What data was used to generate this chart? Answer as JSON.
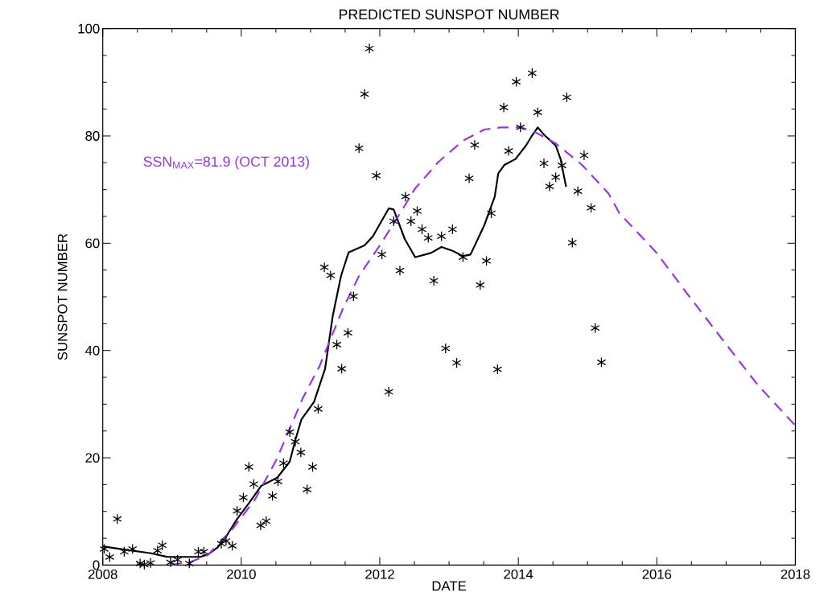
{
  "chart_data": {
    "type": "line",
    "title": "PREDICTED SUNSPOT NUMBER",
    "xlabel": "DATE",
    "ylabel": "SUNSPOT NUMBER",
    "xlim": [
      2008,
      2018
    ],
    "xticks": [
      2008,
      2010,
      2012,
      2014,
      2016,
      2018
    ],
    "ylim": [
      0,
      100
    ],
    "yticks": [
      0,
      20,
      40,
      60,
      80,
      100
    ],
    "grid": false,
    "annotations": [
      "SSN$_{MAX}$=81.9 (OCT 2013)"
    ],
    "series": [
      {
        "type": "scatter",
        "marker": "cross",
        "color": "#000000",
        "x": [
          2008.02,
          2008.1,
          2008.21,
          2008.31,
          2008.43,
          2008.54,
          2008.6,
          2008.69,
          2008.79,
          2008.86,
          2008.98,
          2009.08,
          2009.25,
          2009.38,
          2009.46,
          2009.71,
          2009.78,
          2009.87,
          2009.94,
          2010.03,
          2010.11,
          2010.18,
          2010.28,
          2010.36,
          2010.45,
          2010.53,
          2010.61,
          2010.7,
          2010.78,
          2010.86,
          2010.95,
          2011.03,
          2011.11,
          2011.2,
          2011.29,
          2011.38,
          2011.45,
          2011.54,
          2011.62,
          2011.7,
          2011.78,
          2011.85,
          2011.95,
          2012.03,
          2012.13,
          2012.2,
          2012.29,
          2012.37,
          2012.45,
          2012.54,
          2012.61,
          2012.7,
          2012.78,
          2012.89,
          2012.95,
          2013.05,
          2013.11,
          2013.2,
          2013.29,
          2013.37,
          2013.45,
          2013.54,
          2013.61,
          2013.7,
          2013.79,
          2013.86,
          2013.97,
          2014.03,
          2014.2,
          2014.28,
          2014.37,
          2014.45,
          2014.54,
          2014.63,
          2014.7,
          2014.78,
          2014.86,
          2014.95,
          2015.05,
          2015.11,
          2015.2
        ],
        "values": [
          3.0,
          1.5,
          8.6,
          2.5,
          3.0,
          0.3,
          0.1,
          0.4,
          2.7,
          3.7,
          0.5,
          1.0,
          0.3,
          2.5,
          2.5,
          4.0,
          4.5,
          3.6,
          10.1,
          12.6,
          18.3,
          15.1,
          7.4,
          8.2,
          12.9,
          15.6,
          19.0,
          24.8,
          23.0,
          21.0,
          14.1,
          18.3,
          29.1,
          55.5,
          54.0,
          41.1,
          36.6,
          43.3,
          50.1,
          77.7,
          87.8,
          96.3,
          72.6,
          57.9,
          32.3,
          64.1,
          54.9,
          68.7,
          64.1,
          66.0,
          62.6,
          61.0,
          53.0,
          61.3,
          40.4,
          62.6,
          37.7,
          57.4,
          72.1,
          78.3,
          52.2,
          56.7,
          65.6,
          36.5,
          85.3,
          77.2,
          90.1,
          81.6,
          91.7,
          84.4,
          74.9,
          70.6,
          72.3,
          74.5,
          87.2,
          60.1,
          69.7,
          76.4,
          66.6,
          44.2,
          37.8
        ]
      },
      {
        "line_style": "solid",
        "color": "#000000",
        "x": [
          2008.0,
          2008.25,
          2008.7,
          2008.94,
          2009.4,
          2009.52,
          2009.66,
          2009.79,
          2009.94,
          2010.13,
          2010.29,
          2010.52,
          2010.7,
          2010.78,
          2010.87,
          2011.05,
          2011.21,
          2011.32,
          2011.44,
          2011.55,
          2011.78,
          2011.9,
          2012.13,
          2012.2,
          2012.36,
          2012.51,
          2012.74,
          2012.89,
          2013.05,
          2013.2,
          2013.31,
          2013.51,
          2013.66,
          2013.71,
          2013.8,
          2013.96,
          2014.11,
          2014.2,
          2014.28,
          2014.38,
          2014.54,
          2014.61,
          2014.69
        ],
        "values": [
          3.5,
          3.0,
          2.2,
          1.5,
          1.5,
          2.0,
          3.3,
          5.5,
          8.6,
          11.9,
          14.8,
          16.3,
          19.3,
          23.3,
          27.2,
          30.4,
          36.6,
          46.4,
          53.9,
          58.3,
          59.6,
          61.3,
          66.5,
          66.3,
          60.8,
          57.4,
          58.2,
          59.3,
          58.6,
          57.6,
          57.9,
          63.4,
          68.7,
          73.0,
          74.6,
          75.7,
          78.2,
          80.1,
          81.6,
          80.1,
          78.2,
          75.7,
          70.5
        ]
      },
      {
        "line_style": "dashed",
        "color": "#9933ee",
        "x": [
          2008.98,
          2009.29,
          2009.52,
          2009.89,
          2010.2,
          2010.51,
          2010.89,
          2011.13,
          2011.47,
          2011.7,
          2012.01,
          2012.28,
          2012.51,
          2012.85,
          2013.2,
          2013.51,
          2013.75,
          2014.04,
          2014.26,
          2014.54,
          2014.92,
          2015.3,
          2015.46,
          2015.99,
          2016.45,
          2016.95,
          2017.45,
          2018.0
        ],
        "values": [
          0.0,
          0.7,
          1.9,
          7.0,
          12.3,
          19.7,
          31.2,
          37.1,
          47.9,
          53.9,
          59.8,
          65.3,
          70.2,
          75.2,
          79.1,
          81.2,
          81.6,
          81.6,
          80.6,
          78.6,
          74.6,
          69.3,
          65.6,
          58.3,
          50.4,
          42.0,
          33.7,
          26.0
        ]
      }
    ]
  }
}
